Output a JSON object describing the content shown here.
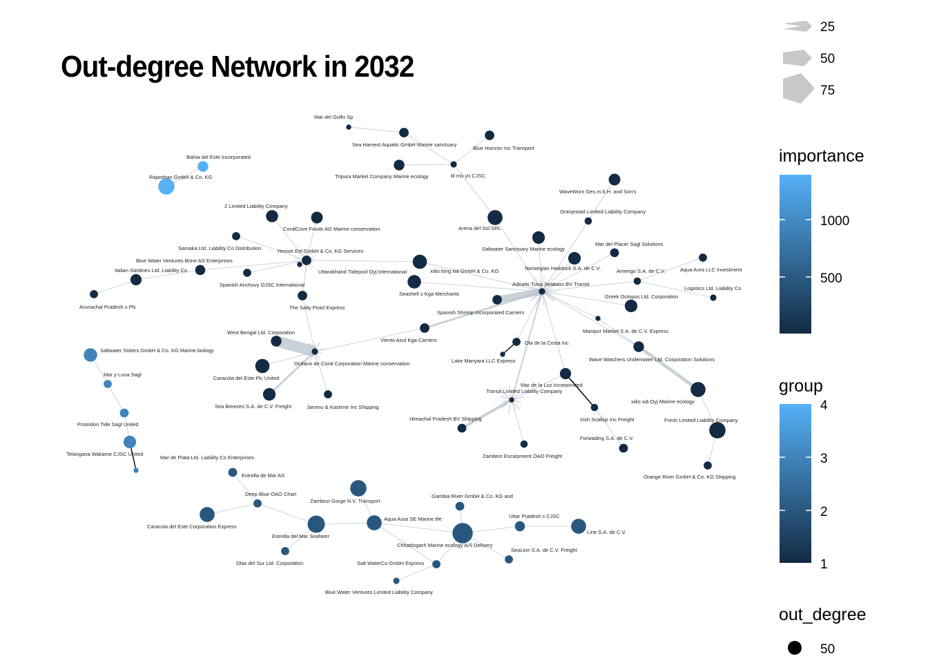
{
  "title": "Out-degree Network in 2032",
  "colors": {
    "low": "#132B43",
    "high": "#56B1F7",
    "edge": "#b8c2cc",
    "edge_dark": "#000000"
  },
  "legend": {
    "weight_ticks": [
      "25",
      "50",
      "75"
    ],
    "importance_title": "importance",
    "importance_ticks": [
      "1000",
      "500"
    ],
    "group_title": "group",
    "group_ticks": [
      "4",
      "3",
      "2",
      "1"
    ],
    "out_degree_title": "out_degree",
    "out_degree_ticks": [
      "50"
    ]
  },
  "nodes": [
    {
      "id": "mar_golfo",
      "label": "Mar del Golfo Sp",
      "group": 1,
      "out_degree": 1
    },
    {
      "id": "sea_harvest",
      "label": "Sea Harvest Aquatic GmbH Marine sanctuary",
      "group": 1,
      "out_degree": 6
    },
    {
      "id": "blue_horizon",
      "label": "Blue Horizon Inc Transport",
      "group": 1,
      "out_degree": 6
    },
    {
      "id": "tripura",
      "label": "Tripura  Market Company Marine ecology",
      "group": 1,
      "out_degree": 8
    },
    {
      "id": "bi_mu",
      "label": "bǐ mù yú CJSC",
      "group": 1,
      "out_degree": 2
    },
    {
      "id": "bahia",
      "label": "Bahía del Este Incorporated",
      "group": 4,
      "out_degree": 8
    },
    {
      "id": "rajasthan",
      "label": "Rajasthan  GmbH & Co. KG",
      "group": 4,
      "out_degree": 22
    },
    {
      "id": "waveworx",
      "label": "WaveWorx Ges.m.b.H. and Son's",
      "group": 1,
      "out_degree": 10
    },
    {
      "id": "oranjestad",
      "label": "Oranjestad Limited Liability Company",
      "group": 1,
      "out_degree": 3
    },
    {
      "id": "two_llc",
      "label": "2 Limited Liability Company",
      "group": 1,
      "out_degree": 11
    },
    {
      "id": "coralcove",
      "label": "CoralCove Foods AG Marine conservation",
      "group": 1,
      "out_degree": 10
    },
    {
      "id": "arena",
      "label": "Arena del Sol SRL",
      "group": 1,
      "out_degree": 18
    },
    {
      "id": "samaka",
      "label": "Samaka Ltd. Liability Co Distribution",
      "group": 1,
      "out_degree": 4
    },
    {
      "id": "yenisei",
      "label": "Yenisei  Eel GmbH & Co. KG Services",
      "group": 1,
      "out_degree": 6
    },
    {
      "id": "saltwater_sanctuary",
      "label": "Saltwater Sanctuary Marine ecology",
      "group": 1,
      "out_degree": 12
    },
    {
      "id": "mar_placer",
      "label": "Mar del Placer Sagl Solutions",
      "group": 1,
      "out_degree": 5
    },
    {
      "id": "blue_water_brine",
      "label": "Blue Water Ventures Brine AS Enterprises",
      "group": 1,
      "out_degree": 7
    },
    {
      "id": "italian_sardines",
      "label": "Italian Sardines Ltd. Liability Co",
      "group": 1,
      "out_degree": 9
    },
    {
      "id": "uttarakhand",
      "label": "Uttarakhand  Tidepool Oyj International",
      "group": 1,
      "out_degree": 1
    },
    {
      "id": "xiao_long",
      "label": "xiǎo lóng xiā GmbH & Co. KG",
      "group": 1,
      "out_degree": 16
    },
    {
      "id": "norwegian",
      "label": "Norwegian Haddock S.A. de C.V.",
      "group": 1,
      "out_degree": 12
    },
    {
      "id": "amerigo",
      "label": "Amerigo S.A. de C.V.",
      "group": 1,
      "out_degree": 3
    },
    {
      "id": "aqua_aura_llc",
      "label": "Aqua Aura LLC Investment",
      "group": 1,
      "out_degree": 4
    },
    {
      "id": "spanish_anchovy",
      "label": "Spanish Anchovy OJSC International",
      "group": 1,
      "out_degree": 4
    },
    {
      "id": "seashell",
      "label": "Seashell s  Kga Merchants",
      "group": 1,
      "out_degree": 14
    },
    {
      "id": "adriatic",
      "label": "Adriatic Tuna Seabass BV Transit",
      "group": 1,
      "out_degree": 2
    },
    {
      "id": "logistics",
      "label": "Logistics Ltd. Liability Co",
      "group": 1,
      "out_degree": 2
    },
    {
      "id": "arunachal",
      "label": "Arunachal Pradesh s Plc",
      "group": 1,
      "out_degree": 4
    },
    {
      "id": "salty_pearl",
      "label": "The Salty Pearl Express",
      "group": 1,
      "out_degree": 6
    },
    {
      "id": "greek_octopus",
      "label": "Greek Octopus Ltd. Corporation",
      "group": 1,
      "out_degree": 12
    },
    {
      "id": "spanish_shrimp",
      "label": "Spanish Shrimp Incorporated Carriers",
      "group": 1,
      "out_degree": 6
    },
    {
      "id": "manipur",
      "label": "Manipur  Market S.A. de C.V. Express",
      "group": 1,
      "out_degree": 1
    },
    {
      "id": "vienti_azul",
      "label": "Viento Azul Kga Carriers",
      "group": 1,
      "out_degree": 6
    },
    {
      "id": "west_bengal",
      "label": "West Bengal  Ltd. Corporation",
      "group": 1,
      "out_degree": 8
    },
    {
      "id": "ola_costa",
      "label": "Ola de la Costa Inc",
      "group": 1,
      "out_degree": 4
    },
    {
      "id": "wave_watchers",
      "label": "Wave Watchers Underwater Ltd. Corporation Solutions",
      "group": 1,
      "out_degree": 8
    },
    {
      "id": "saltwater_sisters",
      "label": "Saltwater Sisters GmbH & Co. KG Marine biology",
      "group": 3,
      "out_degree": 14
    },
    {
      "id": "oceano_coral",
      "label": "Océano de Coral Corporation Marine conservation",
      "group": 1,
      "out_degree": 2
    },
    {
      "id": "lake_manyara",
      "label": "Lake Manyara   LLC Express",
      "group": 1,
      "out_degree": 1
    },
    {
      "id": "caracola_este_plc",
      "label": "Caracola del Este Plc United",
      "group": 1,
      "out_degree": 16
    },
    {
      "id": "mar_luz",
      "label": "Mar de la Luz Incorporated",
      "group": 1,
      "out_degree": 9
    },
    {
      "id": "mar_luna",
      "label": "Mar y Luna Sagl",
      "group": 3,
      "out_degree": 4
    },
    {
      "id": "transit_llc",
      "label": "Transit Limited Liability Company",
      "group": 1,
      "out_degree": 1
    },
    {
      "id": "xiao_xia",
      "label": "xiǎo xiā Oyj Marine ecology",
      "group": 1,
      "out_degree": 18
    },
    {
      "id": "sea_breezes",
      "label": "Sea Breezes S.A. de C.V. Freight",
      "group": 1,
      "out_degree": 12
    },
    {
      "id": "jammu",
      "label": "Jammu & Kashmir  Inc Shipping",
      "group": 1,
      "out_degree": 4
    },
    {
      "id": "irish_scallop",
      "label": "Irish Scallop Inc Freight",
      "group": 1,
      "out_degree": 3
    },
    {
      "id": "fresh_llc",
      "label": "Fresh Limited Liability Company",
      "group": 1,
      "out_degree": 22
    },
    {
      "id": "poseidon",
      "label": "Poseidon Tide Sagl United",
      "group": 3,
      "out_degree": 5
    },
    {
      "id": "himachal",
      "label": "Himachal Pradesh  BV Shipping",
      "group": 1,
      "out_degree": 5
    },
    {
      "id": "forwading",
      "label": "Forwading S.A. de C.V.",
      "group": 1,
      "out_degree": 5
    },
    {
      "id": "telangana",
      "label": "Telangana  Wakame CJSC United",
      "group": 3,
      "out_degree": 12
    },
    {
      "id": "zambezi_escarpment",
      "label": "Zambezi Escarpment  OAO Freight",
      "group": 1,
      "out_degree": 3
    },
    {
      "id": "mar_plata",
      "label": "Mar de Plata Ltd. Liability Co Enterprises",
      "group": 3,
      "out_degree": 1
    },
    {
      "id": "orange_river",
      "label": "Orange River   GmbH & Co. KG Shipping",
      "group": 1,
      "out_degree": 4
    },
    {
      "id": "estrella_mar",
      "label": "Estrella de Mar AS",
      "group": 2,
      "out_degree": 5
    },
    {
      "id": "zambezi_gorge",
      "label": "Zambezi Gorge  N.V. Transport",
      "group": 2,
      "out_degree": 22
    },
    {
      "id": "deep_blue",
      "label": "Deep Blue OAO Chart",
      "group": 2,
      "out_degree": 4
    },
    {
      "id": "gambia",
      "label": "Gambia River   GmbH & Co. KG and",
      "group": 2,
      "out_degree": 5
    },
    {
      "id": "caracola_este_corp",
      "label": "Caracola del Este Corporation Express",
      "group": 2,
      "out_degree": 18
    },
    {
      "id": "aqua_aura_se",
      "label": "Aqua Aura SE Marine life",
      "group": 2,
      "out_degree": 18
    },
    {
      "id": "uttar_pradesh",
      "label": "Uttar Pradesh s CJSC",
      "group": 2,
      "out_degree": 7
    },
    {
      "id": "estrella_mar_seafarer",
      "label": "Estrella del Mar Seafarer",
      "group": 2,
      "out_degree": 25
    },
    {
      "id": "line_sa",
      "label": "Line S.A. de C.V.",
      "group": 2,
      "out_degree": 18
    },
    {
      "id": "chhattisgarh",
      "label": "Chhattisgarh  Marine ecology A/S Delivery",
      "group": 2,
      "out_degree": 36
    },
    {
      "id": "sealion",
      "label": "SeaLion S.A. de C.V. Freight",
      "group": 2,
      "out_degree": 4
    },
    {
      "id": "olas_sur",
      "label": "Olas del Sur Ltd. Corporation",
      "group": 2,
      "out_degree": 4
    },
    {
      "id": "salt_waterco",
      "label": "Salt WaterCo GmbH Express",
      "group": 2,
      "out_degree": 4
    },
    {
      "id": "blue_water_llc",
      "label": "Blue Water Ventures Limited Liability Company",
      "group": 2,
      "out_degree": 2
    }
  ],
  "edges": [
    [
      "mar_golfo",
      "sea_harvest"
    ],
    [
      "sea_harvest",
      "bi_mu"
    ],
    [
      "tripura",
      "bi_mu"
    ],
    [
      "blue_horizon",
      "bi_mu"
    ],
    [
      "bi_mu",
      "arena"
    ],
    [
      "arena",
      "adriatic"
    ],
    [
      "bahia",
      "rajasthan"
    ],
    [
      "waveworx",
      "oranjestad"
    ],
    [
      "oranjestad",
      "adriatic"
    ],
    [
      "yenisei",
      "two_llc"
    ],
    [
      "yenisei",
      "coralcove"
    ],
    [
      "yenisei",
      "samaka"
    ],
    [
      "yenisei",
      "blue_water_brine"
    ],
    [
      "yenisei",
      "spanish_anchovy"
    ],
    [
      "yenisei",
      "salty_pearl"
    ],
    [
      "yenisei",
      "xiao_long"
    ],
    [
      "blue_water_brine",
      "italian_sardines"
    ],
    [
      "italian_sardines",
      "arunachal"
    ],
    [
      "adriatic",
      "saltwater_sanctuary"
    ],
    [
      "adriatic",
      "mar_placer"
    ],
    [
      "adriatic",
      "amerigo"
    ],
    [
      "amerigo",
      "aqua_aura_llc"
    ],
    [
      "amerigo",
      "logistics"
    ],
    [
      "adriatic",
      "greek_octopus"
    ],
    [
      "adriatic",
      "seashell"
    ],
    [
      "adriatic",
      "xiao_long"
    ],
    [
      "adriatic",
      "norwegian"
    ],
    [
      "adriatic",
      "spanish_shrimp"
    ],
    [
      "adriatic",
      "manipur"
    ],
    [
      "adriatic",
      "ola_costa"
    ],
    [
      "adriatic",
      "mar_luz"
    ],
    [
      "adriatic",
      "vienti_azul"
    ],
    [
      "vienti_azul",
      "oceano_coral"
    ],
    [
      "adriatic",
      "wave_watchers"
    ],
    [
      "manipur",
      "wave_watchers"
    ],
    [
      "wave_watchers",
      "xiao_xia"
    ],
    [
      "xiao_xia",
      "fresh_llc"
    ],
    [
      "fresh_llc",
      "orange_river"
    ],
    [
      "adriatic",
      "transit_llc"
    ],
    [
      "oceano_coral",
      "west_bengal"
    ],
    [
      "oceano_coral",
      "caracola_este_plc"
    ],
    [
      "oceano_coral",
      "sea_breezes"
    ],
    [
      "oceano_coral",
      "jammu"
    ],
    [
      "oceano_coral",
      "salty_pearl"
    ],
    [
      "ola_costa",
      "lake_manyara"
    ],
    [
      "transit_llc",
      "himachal"
    ],
    [
      "transit_llc",
      "zambezi_escarpment"
    ],
    [
      "transit_llc",
      "mar_luz"
    ],
    [
      "mar_luz",
      "irish_scallop"
    ],
    [
      "irish_scallop",
      "forwading"
    ],
    [
      "saltwater_sisters",
      "mar_luna"
    ],
    [
      "mar_luna",
      "poseidon"
    ],
    [
      "poseidon",
      "telangana"
    ],
    [
      "telangana",
      "mar_plata"
    ],
    [
      "estrella_mar",
      "deep_blue"
    ],
    [
      "deep_blue",
      "caracola_este_corp"
    ],
    [
      "deep_blue",
      "estrella_mar_seafarer"
    ],
    [
      "estrella_mar_seafarer",
      "olas_sur"
    ],
    [
      "estrella_mar_seafarer",
      "aqua_aura_se"
    ],
    [
      "zambezi_gorge",
      "aqua_aura_se"
    ],
    [
      "aqua_aura_se",
      "chhattisgarh"
    ],
    [
      "gambia",
      "chhattisgarh"
    ],
    [
      "chhattisgarh",
      "uttar_pradesh"
    ],
    [
      "uttar_pradesh",
      "line_sa"
    ],
    [
      "chhattisgarh",
      "sealion"
    ],
    [
      "chhattisgarh",
      "salt_waterco"
    ],
    [
      "salt_waterco",
      "blue_water_llc"
    ],
    [
      "aqua_aura_se",
      "salt_waterco"
    ]
  ]
}
